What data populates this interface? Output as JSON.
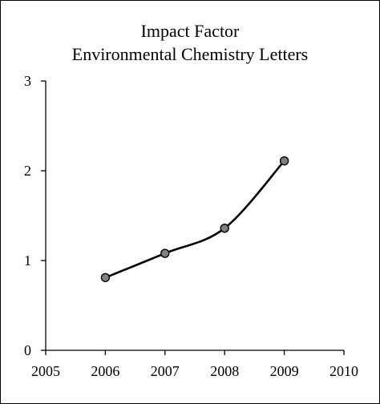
{
  "chart_data": {
    "type": "line",
    "title": [
      "Impact Factor",
      "Environmental Chemistry Letters"
    ],
    "xlabel": "",
    "ylabel": "",
    "xlim": [
      2005,
      2010
    ],
    "ylim": [
      0,
      3
    ],
    "x_ticks": [
      2005,
      2006,
      2007,
      2008,
      2009,
      2010
    ],
    "y_ticks": [
      0,
      1,
      2,
      3
    ],
    "grid": false,
    "series": [
      {
        "x": [
          2006,
          2007,
          2008,
          2009
        ],
        "values": [
          0.81,
          1.08,
          1.36,
          2.11
        ],
        "line_color": "#000000",
        "marker_color": "#808080",
        "marker": "circle",
        "smooth": true
      }
    ]
  }
}
